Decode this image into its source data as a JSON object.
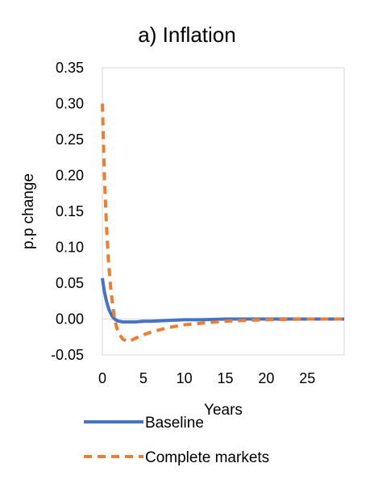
{
  "chart_data": {
    "type": "line",
    "title": "a) Inflation",
    "xlabel": "Years",
    "ylabel": "p.p change",
    "xlim": [
      0,
      29.5
    ],
    "ylim": [
      -0.05,
      0.35
    ],
    "x_ticks": [
      0,
      5,
      10,
      15,
      20,
      25
    ],
    "y_ticks": [
      -0.05,
      0.0,
      0.05,
      0.1,
      0.15,
      0.2,
      0.25,
      0.3,
      0.35
    ],
    "y_tick_labels": [
      "-0.05",
      "0.00",
      "0.05",
      "0.10",
      "0.15",
      "0.20",
      "0.25",
      "0.30",
      "0.35"
    ],
    "grid": false,
    "legend_position": "bottom",
    "series": [
      {
        "name": "Baseline",
        "color": "#4472C4",
        "style": "solid",
        "x": [
          0,
          0.25,
          0.5,
          0.75,
          1,
          1.25,
          1.5,
          1.75,
          2,
          2.5,
          3,
          4,
          5,
          6,
          8,
          10,
          12,
          15,
          20,
          25,
          29.5
        ],
        "y": [
          0.057,
          0.038,
          0.025,
          0.015,
          0.008,
          0.003,
          0.0,
          -0.002,
          -0.003,
          -0.004,
          -0.004,
          -0.004,
          -0.003,
          -0.003,
          -0.002,
          -0.001,
          -0.001,
          0.0,
          0.0,
          0.0,
          0.0
        ]
      },
      {
        "name": "Complete markets",
        "color": "#ED7D31",
        "style": "dashed",
        "x": [
          0,
          0.25,
          0.5,
          0.75,
          1,
          1.25,
          1.5,
          1.75,
          2,
          2.5,
          3,
          3.5,
          4,
          5,
          6,
          8,
          10,
          12,
          15,
          20,
          25,
          29.5
        ],
        "y": [
          0.3,
          0.2,
          0.13,
          0.08,
          0.045,
          0.02,
          0.0,
          -0.012,
          -0.02,
          -0.028,
          -0.031,
          -0.03,
          -0.027,
          -0.022,
          -0.018,
          -0.012,
          -0.008,
          -0.006,
          -0.003,
          -0.001,
          0.0,
          0.0
        ]
      }
    ]
  }
}
